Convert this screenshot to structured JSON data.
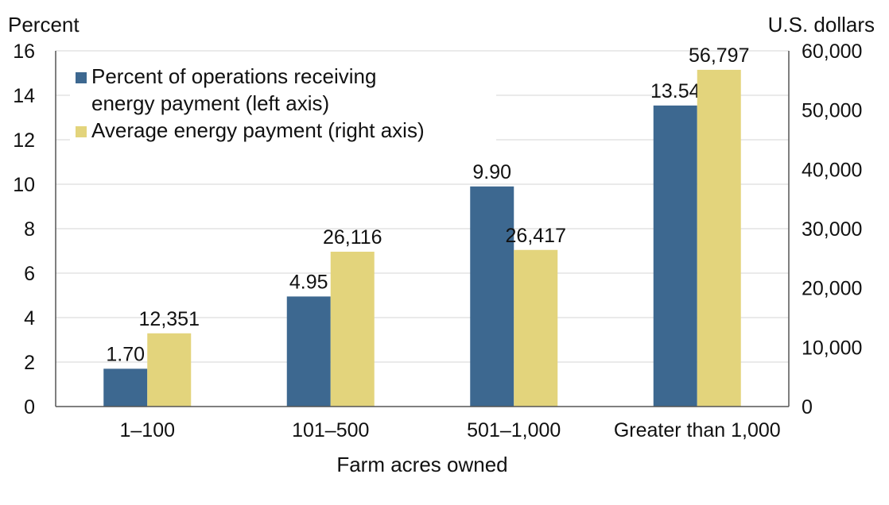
{
  "chart_data": {
    "type": "bar",
    "categories": [
      "1–100",
      "101–500",
      "501–1,000",
      "Greater than 1,000"
    ],
    "series": [
      {
        "name_lines": [
          "Percent of operations receiving",
          "energy payment (left axis)"
        ],
        "axis": "left",
        "color": "#3d6890",
        "values": [
          1.7,
          4.95,
          9.9,
          13.54
        ],
        "labels": [
          "1.70",
          "4.95",
          "9.90",
          "13.54"
        ]
      },
      {
        "name_lines": [
          "Average energy payment (right axis)"
        ],
        "axis": "right",
        "color": "#e3d47c",
        "values": [
          12351,
          26116,
          26417,
          56797
        ],
        "labels": [
          "12,351",
          "26,116",
          "26,417",
          "56,797"
        ]
      }
    ],
    "xlabel": "Farm acres owned",
    "ylabel_left": "Percent",
    "ylabel_right": "U.S. dollars",
    "ylim_left": [
      0,
      16
    ],
    "ylim_right": [
      0,
      60000
    ],
    "yticks_left": [
      {
        "value": 0,
        "label": "0"
      },
      {
        "value": 2,
        "label": "2"
      },
      {
        "value": 4,
        "label": "4"
      },
      {
        "value": 6,
        "label": "6"
      },
      {
        "value": 8,
        "label": "8"
      },
      {
        "value": 10,
        "label": "10"
      },
      {
        "value": 12,
        "label": "12"
      },
      {
        "value": 14,
        "label": "14"
      },
      {
        "value": 16,
        "label": "16"
      }
    ],
    "yticks_right": [
      {
        "value": 0,
        "label": "0"
      },
      {
        "value": 10000,
        "label": "10,000"
      },
      {
        "value": 20000,
        "label": "20,000"
      },
      {
        "value": 30000,
        "label": "30,000"
      },
      {
        "value": 40000,
        "label": "40,000"
      },
      {
        "value": 50000,
        "label": "50,000"
      },
      {
        "value": 60000,
        "label": "60,000"
      }
    ],
    "grid": true,
    "legend_position": "top-left"
  }
}
